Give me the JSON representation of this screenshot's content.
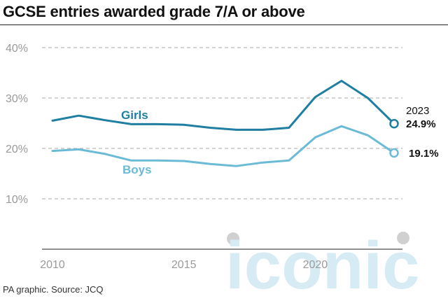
{
  "title": "GCSE entries awarded grade 7/A or above",
  "source": "PA graphic. Source: JCQ",
  "colors": {
    "girls": "#1f7ea1",
    "boys": "#6bbbd6",
    "axis_text": "#9a9a9a",
    "text": "#111111",
    "watermark": "#cfe8f3"
  },
  "chart_data": {
    "type": "line",
    "title": "GCSE entries awarded grade 7/A or above",
    "xlabel": "",
    "ylabel": "",
    "x": [
      2010,
      2011,
      2012,
      2013,
      2014,
      2015,
      2016,
      2017,
      2018,
      2019,
      2020,
      2021,
      2022,
      2023
    ],
    "xlim": [
      2010,
      2023
    ],
    "ylim": [
      0,
      40
    ],
    "y_ticks": [
      10,
      20,
      30,
      40
    ],
    "y_tick_labels": [
      "10%",
      "20%",
      "30%",
      "40%"
    ],
    "x_ticks": [
      2010,
      2015,
      2020
    ],
    "x_tick_labels": [
      "2010",
      "2015",
      "2020"
    ],
    "grid": true,
    "series": [
      {
        "name": "Girls",
        "key": "girls",
        "values": [
          25.5,
          26.5,
          25.6,
          24.8,
          24.8,
          24.7,
          24.1,
          23.7,
          23.7,
          24.1,
          30.2,
          33.4,
          30.0,
          24.9
        ]
      },
      {
        "name": "Boys",
        "key": "boys",
        "values": [
          19.5,
          19.8,
          18.9,
          17.6,
          17.6,
          17.5,
          16.9,
          16.5,
          17.2,
          17.6,
          22.2,
          24.4,
          22.6,
          19.1
        ]
      }
    ],
    "annotations": {
      "year": "2023",
      "girls_value": "24.9%",
      "boys_value": "19.1%"
    }
  },
  "watermark": "iconic"
}
